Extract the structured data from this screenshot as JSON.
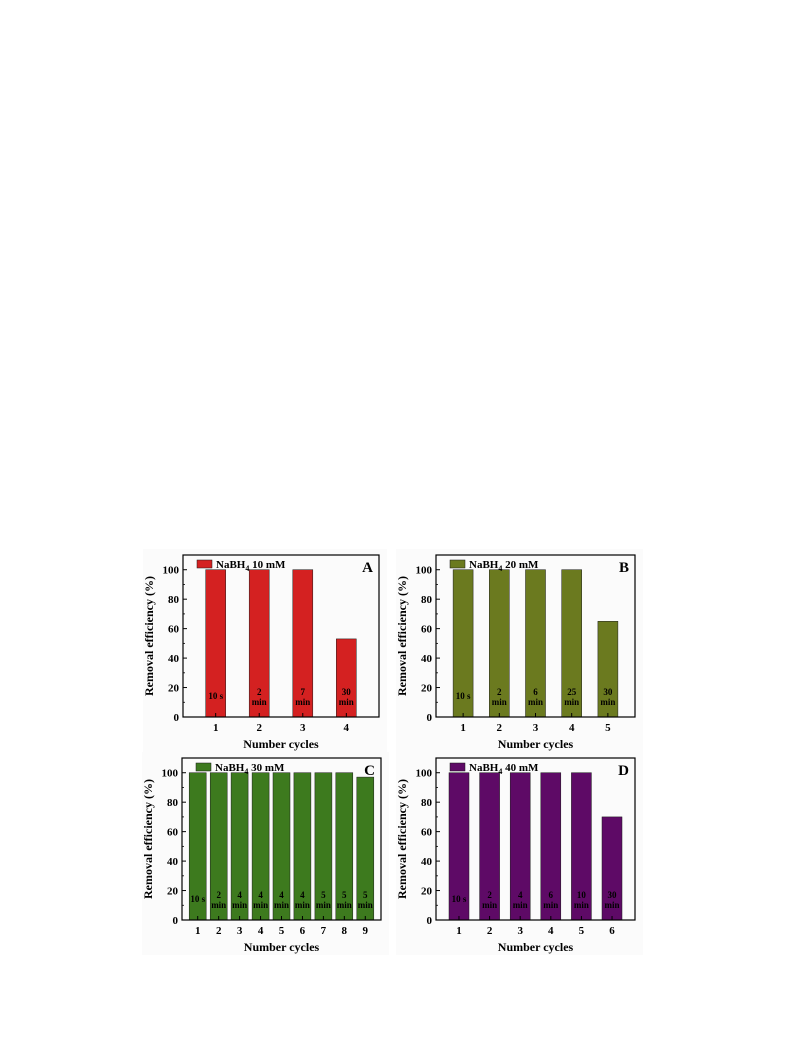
{
  "chart_data": [
    {
      "type": "bar",
      "panel": "A",
      "legend": {
        "prefix": "NaBH",
        "sub": "4",
        "suffix": " 10 mM"
      },
      "color": "#d42121",
      "xlabel": "Number cycles",
      "ylabel": "Removal efficiency (%)",
      "ylim": [
        0,
        110
      ],
      "yticks": [
        0,
        20,
        40,
        60,
        80,
        100
      ],
      "categories": [
        "1",
        "2",
        "3",
        "4"
      ],
      "values": [
        100,
        100,
        100,
        53
      ],
      "labels": [
        [
          "10 s"
        ],
        [
          "2",
          "min"
        ],
        [
          "7",
          "min"
        ],
        [
          "30",
          "min"
        ]
      ]
    },
    {
      "type": "bar",
      "panel": "B",
      "legend": {
        "prefix": "NaBH",
        "sub": "4",
        "suffix": " 20 mM"
      },
      "color": "#6b7a1f",
      "xlabel": "Number cycles",
      "ylabel": "Removal efficiency (%)",
      "ylim": [
        0,
        110
      ],
      "yticks": [
        0,
        20,
        40,
        60,
        80,
        100
      ],
      "categories": [
        "1",
        "2",
        "3",
        "4",
        "5"
      ],
      "values": [
        100,
        100,
        100,
        100,
        65
      ],
      "labels": [
        [
          "10 s"
        ],
        [
          "2",
          "min"
        ],
        [
          "6",
          "min"
        ],
        [
          "25",
          "min"
        ],
        [
          "30",
          "min"
        ]
      ]
    },
    {
      "type": "bar",
      "panel": "C",
      "legend": {
        "prefix": "NaBH",
        "sub": "4",
        "suffix": " 30 mM"
      },
      "color": "#3d7a1e",
      "xlabel": "Number cycles",
      "ylabel": "Removal efficiency (%)",
      "ylim": [
        0,
        110
      ],
      "yticks": [
        0,
        20,
        40,
        60,
        80,
        100
      ],
      "categories": [
        "1",
        "2",
        "3",
        "4",
        "5",
        "6",
        "7",
        "8",
        "9"
      ],
      "values": [
        100,
        100,
        100,
        100,
        100,
        100,
        100,
        100,
        97
      ],
      "labels": [
        [
          "10 s"
        ],
        [
          "2",
          "min"
        ],
        [
          "4",
          "min"
        ],
        [
          "4",
          "min"
        ],
        [
          "4",
          "min"
        ],
        [
          "4",
          "min"
        ],
        [
          "5",
          "min"
        ],
        [
          "5",
          "min"
        ],
        [
          "5",
          "min"
        ]
      ]
    },
    {
      "type": "bar",
      "panel": "D",
      "legend": {
        "prefix": "NaBH",
        "sub": "4",
        "suffix": " 40 mM"
      },
      "color": "#5e0a66",
      "xlabel": "Number cycles",
      "ylabel": "Removal efficiency (%)",
      "ylim": [
        0,
        110
      ],
      "yticks": [
        0,
        20,
        40,
        60,
        80,
        100
      ],
      "categories": [
        "1",
        "2",
        "3",
        "4",
        "5",
        "6"
      ],
      "values": [
        100,
        100,
        100,
        100,
        100,
        70
      ],
      "labels": [
        [
          "10 s"
        ],
        [
          "2",
          "min"
        ],
        [
          "4",
          "min"
        ],
        [
          "6",
          "min"
        ],
        [
          "10",
          "min"
        ],
        [
          "30",
          "min"
        ]
      ]
    }
  ]
}
